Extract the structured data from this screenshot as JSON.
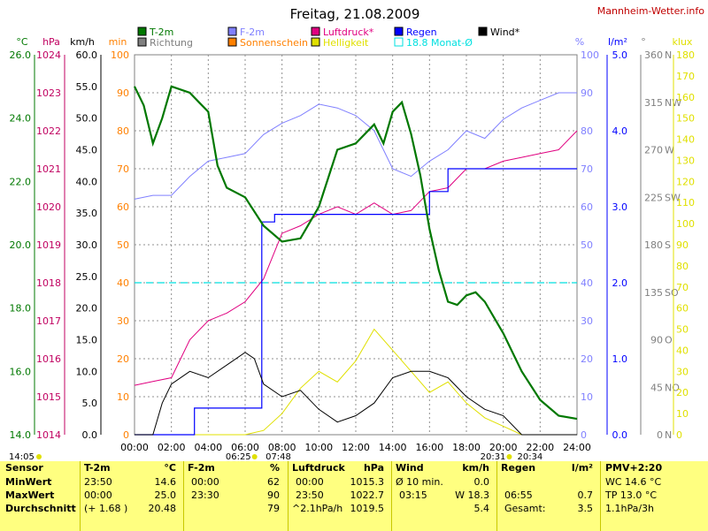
{
  "header": {
    "title": "Freitag, 21.08.2009",
    "site": "Mannheim-Wetter.info"
  },
  "legend": [
    {
      "label": "T-2m",
      "color": "#007800"
    },
    {
      "label": "Richtung",
      "color": "#808080"
    },
    {
      "label": "F-2m",
      "color": "#8080ff"
    },
    {
      "label": "Sonnenschein",
      "color": "#ff8000"
    },
    {
      "label": "Luftdruck*",
      "color": "#e00080"
    },
    {
      "label": "Helligkeit",
      "color": "#e0e000"
    },
    {
      "label": "Regen",
      "color": "#0000ff"
    },
    {
      "label": "18.8 Monat-Ø",
      "color": "#00e0e0"
    },
    {
      "label": "Wind*",
      "color": "#000000"
    }
  ],
  "axes": {
    "temp": {
      "unit": "°C",
      "color": "#007800",
      "ticks": [
        "14.0",
        "16.0",
        "18.0",
        "20.0",
        "22.0",
        "24.0",
        "26.0"
      ]
    },
    "pressure": {
      "unit": "hPa",
      "color": "#c00060",
      "ticks": [
        "1014",
        "1015",
        "1016",
        "1017",
        "1018",
        "1019",
        "1020",
        "1021",
        "1022",
        "1023",
        "1024"
      ]
    },
    "wind": {
      "unit": "km/h",
      "color": "#000000",
      "ticks": [
        "0.0",
        "5.0",
        "10.0",
        "15.0",
        "20.0",
        "25.0",
        "30.0",
        "35.0",
        "40.0",
        "45.0",
        "50.0",
        "55.0",
        "60.0"
      ]
    },
    "sun": {
      "unit": "min",
      "color": "#ff8000",
      "ticks": [
        "0",
        "10",
        "20",
        "30",
        "40",
        "50",
        "60",
        "70",
        "80",
        "90",
        "100"
      ]
    },
    "humidity": {
      "unit": "%",
      "color": "#8080ff",
      "ticks": [
        "0",
        "10",
        "20",
        "30",
        "40",
        "50",
        "60",
        "70",
        "80",
        "90",
        "100"
      ]
    },
    "rain": {
      "unit": "l/m²",
      "color": "#0000ff",
      "ticks": [
        "0.0",
        "1.0",
        "2.0",
        "3.0",
        "4.0",
        "5.0"
      ]
    },
    "direction": {
      "unit": "°",
      "color": "#808080",
      "ticks": [
        "0",
        "45",
        "90",
        "135",
        "180",
        "225",
        "270",
        "315",
        "360"
      ],
      "compass": [
        "N",
        "NO",
        "O",
        "SO",
        "S",
        "SW",
        "W",
        "NW",
        "N"
      ]
    },
    "lux": {
      "unit": "klux",
      "color": "#e0e000",
      "ticks": [
        "0",
        "10",
        "20",
        "30",
        "40",
        "50",
        "60",
        "70",
        "80",
        "90",
        "100",
        "110",
        "120",
        "130",
        "140",
        "150",
        "160",
        "170",
        "180"
      ]
    },
    "time_ticks": [
      "00:00",
      "02:00",
      "04:00",
      "06:00",
      "08:00",
      "10:00",
      "12:00",
      "14:00",
      "16:00",
      "18:00",
      "20:00",
      "22:00",
      "24:00"
    ]
  },
  "markers": {
    "moonset": "14:05",
    "sunrise": "06:25",
    "twilight_morning": "07:48",
    "sunset": "20:31",
    "twilight_evening": "20:34"
  },
  "chart_data": {
    "type": "line",
    "title": "Freitag, 21.08.2009",
    "x_range": [
      "00:00",
      "24:00"
    ],
    "series": [
      {
        "name": "T-2m",
        "unit": "°C",
        "color": "#007800",
        "points": [
          [
            0,
            25.0
          ],
          [
            0.5,
            24.4
          ],
          [
            1,
            23.2
          ],
          [
            1.5,
            24.0
          ],
          [
            2,
            25.0
          ],
          [
            3,
            24.8
          ],
          [
            3.5,
            24.5
          ],
          [
            4,
            24.2
          ],
          [
            4.5,
            22.5
          ],
          [
            5,
            21.8
          ],
          [
            6,
            21.5
          ],
          [
            7,
            20.6
          ],
          [
            8,
            20.1
          ],
          [
            9,
            20.2
          ],
          [
            10,
            21.2
          ],
          [
            11,
            23.0
          ],
          [
            12,
            23.2
          ],
          [
            13,
            23.8
          ],
          [
            13.5,
            23.2
          ],
          [
            14,
            24.2
          ],
          [
            14.5,
            24.5
          ],
          [
            15,
            23.5
          ],
          [
            15.5,
            22.2
          ],
          [
            16,
            20.5
          ],
          [
            16.5,
            19.2
          ],
          [
            17,
            18.2
          ],
          [
            17.5,
            18.1
          ],
          [
            18,
            18.4
          ],
          [
            18.5,
            18.5
          ],
          [
            19,
            18.2
          ],
          [
            20,
            17.2
          ],
          [
            21,
            16.0
          ],
          [
            22,
            15.1
          ],
          [
            23,
            14.6
          ],
          [
            24,
            14.5
          ]
        ]
      },
      {
        "name": "F-2m",
        "unit": "%",
        "color": "#8080ff",
        "points": [
          [
            0,
            62
          ],
          [
            1,
            63
          ],
          [
            2,
            63
          ],
          [
            3,
            68
          ],
          [
            4,
            72
          ],
          [
            5,
            73
          ],
          [
            6,
            74
          ],
          [
            7,
            79
          ],
          [
            8,
            82
          ],
          [
            9,
            84
          ],
          [
            10,
            87
          ],
          [
            11,
            86
          ],
          [
            12,
            84
          ],
          [
            13,
            80
          ],
          [
            14,
            70
          ],
          [
            15,
            68
          ],
          [
            16,
            72
          ],
          [
            17,
            75
          ],
          [
            18,
            80
          ],
          [
            19,
            78
          ],
          [
            20,
            83
          ],
          [
            21,
            86
          ],
          [
            22,
            88
          ],
          [
            23,
            90
          ],
          [
            24,
            90
          ]
        ]
      },
      {
        "name": "Luftdruck*",
        "unit": "hPa",
        "color": "#e00080",
        "points": [
          [
            0,
            1015.3
          ],
          [
            1,
            1015.4
          ],
          [
            2,
            1015.5
          ],
          [
            3,
            1016.5
          ],
          [
            4,
            1017
          ],
          [
            5,
            1017.2
          ],
          [
            6,
            1017.5
          ],
          [
            7,
            1018.1
          ],
          [
            8,
            1019.3
          ],
          [
            9,
            1019.5
          ],
          [
            10,
            1019.8
          ],
          [
            11,
            1020.0
          ],
          [
            12,
            1019.8
          ],
          [
            13,
            1020.1
          ],
          [
            14,
            1019.8
          ],
          [
            15,
            1019.9
          ],
          [
            16,
            1020.4
          ],
          [
            17,
            1020.5
          ],
          [
            18,
            1021.0
          ],
          [
            19,
            1021.0
          ],
          [
            20,
            1021.2
          ],
          [
            21,
            1021.3
          ],
          [
            22,
            1021.4
          ],
          [
            23,
            1021.5
          ],
          [
            24,
            1022.0
          ]
        ]
      },
      {
        "name": "Wind*",
        "unit": "km/h",
        "color": "#000000",
        "points": [
          [
            0,
            0
          ],
          [
            1,
            0
          ],
          [
            1.5,
            5
          ],
          [
            2,
            8
          ],
          [
            3,
            10
          ],
          [
            4,
            9
          ],
          [
            5,
            11
          ],
          [
            6,
            13
          ],
          [
            6.5,
            12
          ],
          [
            7,
            8
          ],
          [
            8,
            6
          ],
          [
            9,
            7
          ],
          [
            10,
            4
          ],
          [
            11,
            2
          ],
          [
            12,
            3
          ],
          [
            13,
            5
          ],
          [
            14,
            9
          ],
          [
            15,
            10
          ],
          [
            16,
            10
          ],
          [
            17,
            9
          ],
          [
            18,
            6
          ],
          [
            19,
            4
          ],
          [
            20,
            3
          ],
          [
            21,
            0
          ],
          [
            22,
            0
          ],
          [
            23,
            0
          ],
          [
            24,
            0
          ]
        ]
      },
      {
        "name": "Helligkeit",
        "unit": "klux",
        "color": "#e0e000",
        "points": [
          [
            0,
            0
          ],
          [
            6,
            0
          ],
          [
            7,
            2
          ],
          [
            8,
            10
          ],
          [
            9,
            22
          ],
          [
            10,
            30
          ],
          [
            11,
            25
          ],
          [
            12,
            35
          ],
          [
            13,
            50
          ],
          [
            14,
            40
          ],
          [
            15,
            30
          ],
          [
            16,
            20
          ],
          [
            17,
            25
          ],
          [
            18,
            15
          ],
          [
            19,
            8
          ],
          [
            20,
            4
          ],
          [
            21,
            0
          ],
          [
            24,
            0
          ]
        ]
      },
      {
        "name": "Regen",
        "unit": "l/m²",
        "color": "#0000ff",
        "points": [
          [
            0,
            0
          ],
          [
            3.25,
            0
          ],
          [
            3.25,
            0.35
          ],
          [
            6.9,
            0.35
          ],
          [
            6.9,
            2.8
          ],
          [
            7.6,
            2.8
          ],
          [
            7.6,
            2.9
          ],
          [
            16,
            2.9
          ],
          [
            16,
            3.2
          ],
          [
            17,
            3.2
          ],
          [
            17,
            3.5
          ],
          [
            24,
            3.5
          ]
        ]
      },
      {
        "name": "18.8 Monat-Ø",
        "unit": "°C",
        "color": "#00e0e0",
        "points": [
          [
            0,
            18.8
          ],
          [
            24,
            18.8
          ]
        ]
      }
    ]
  },
  "stats": {
    "sensor": {
      "title": "Sensor",
      "rows": [
        "MinWert",
        "MaxWert",
        "Durchschnitt"
      ]
    },
    "temp": {
      "title": "T-2m",
      "unit": "°C",
      "rows": [
        [
          "23:50",
          "14.6"
        ],
        [
          "00:00",
          "25.0"
        ],
        [
          "(+ 1.68 )",
          "20.48"
        ]
      ]
    },
    "hum": {
      "title": "F-2m",
      "unit": "%",
      "rows": [
        [
          "00:00",
          "62"
        ],
        [
          "23:30",
          "90"
        ],
        [
          "",
          "79"
        ]
      ]
    },
    "press": {
      "title": "Luftdruck",
      "unit": "hPa",
      "rows": [
        [
          "00:00",
          "1015.3"
        ],
        [
          "23:50",
          "1022.7"
        ],
        [
          "^2.1hPa/h",
          "1019.5"
        ]
      ]
    },
    "wind": {
      "title": "Wind",
      "unit": "km/h",
      "rows": [
        [
          "Ø 10 min.",
          "0.0"
        ],
        [
          "03:15",
          "W 18.3"
        ],
        [
          "",
          "5.4"
        ]
      ]
    },
    "rain": {
      "title": "Regen",
      "unit": "l/m²",
      "rows": [
        [
          "",
          ""
        ],
        [
          "06:55",
          "0.7"
        ],
        [
          "Gesamt:",
          "3.5"
        ]
      ]
    },
    "pmv": {
      "title": "PMV+2:20",
      "rows": [
        "WC 14.6 °C",
        "TP 13.0 °C",
        "1.1hPa/3h"
      ]
    }
  }
}
